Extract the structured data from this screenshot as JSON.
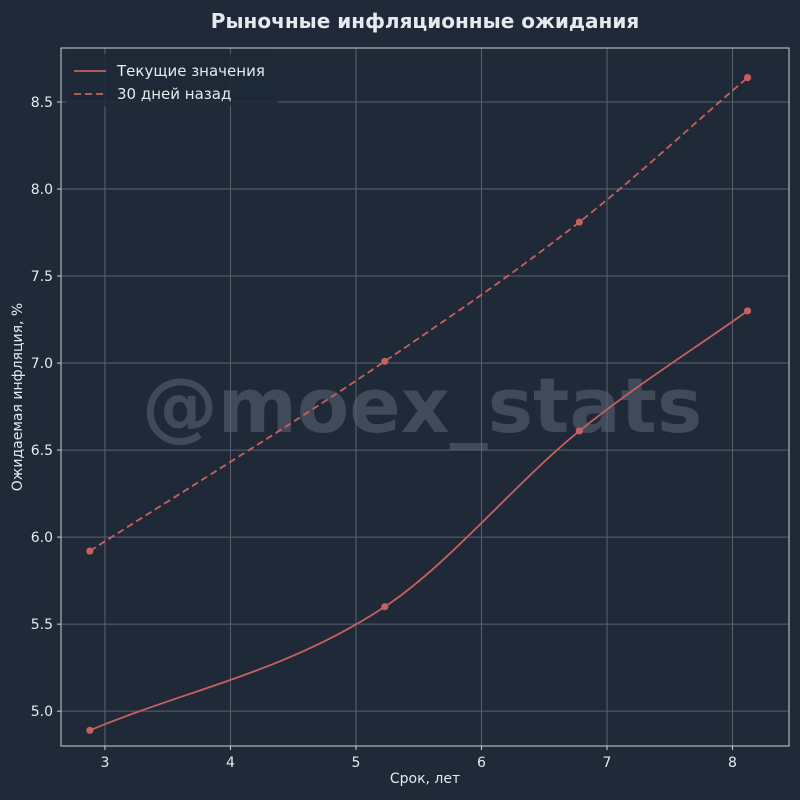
{
  "watermark": "@moex_stats",
  "chart_data": {
    "type": "line",
    "title": "Рыночные инфляционные ожидания",
    "xlabel": "Срок, лет",
    "ylabel": "Ожидаемая инфляция, %",
    "xlim": [
      2.65,
      8.45
    ],
    "ylim": [
      4.8,
      8.81
    ],
    "xticks": [
      3,
      4,
      5,
      6,
      7,
      8
    ],
    "yticks": [
      5.0,
      5.5,
      6.0,
      6.5,
      7.0,
      7.5,
      8.0,
      8.5
    ],
    "grid": true,
    "legend_position": "top-left",
    "series": [
      {
        "name": "Текущие значения",
        "style": "solid",
        "color": "#c8605f",
        "x": [
          2.88,
          5.23,
          6.78,
          8.12
        ],
        "y": [
          4.89,
          5.6,
          6.61,
          7.3
        ]
      },
      {
        "name": "30 дней назад",
        "style": "dashed",
        "color": "#c8605f",
        "x": [
          2.88,
          5.23,
          6.78,
          8.12
        ],
        "y": [
          5.92,
          7.01,
          7.81,
          8.64
        ]
      }
    ]
  }
}
